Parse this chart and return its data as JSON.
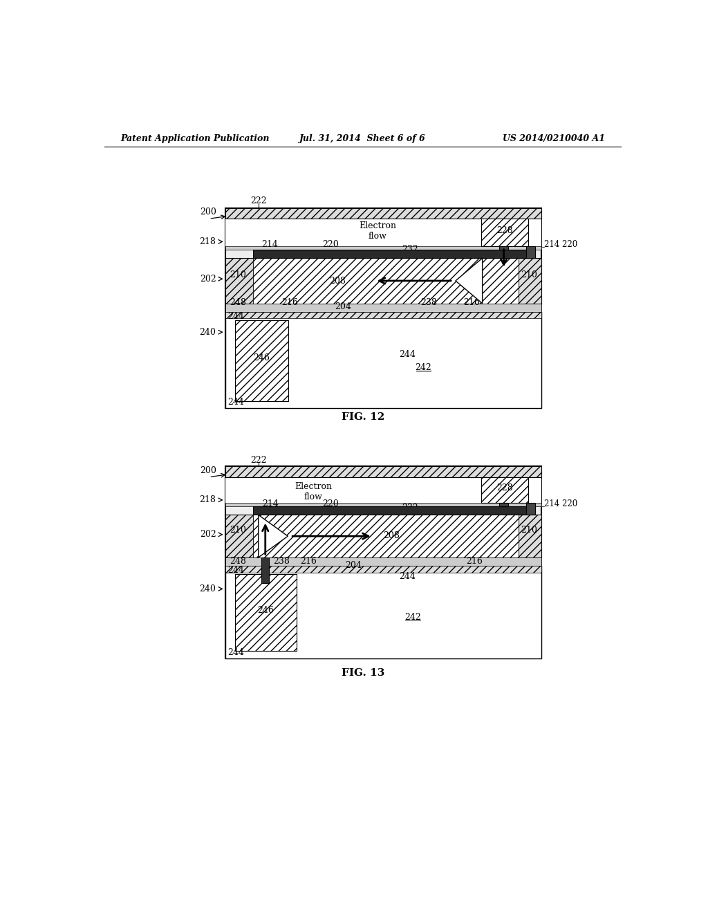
{
  "title_left": "Patent Application Publication",
  "title_center": "Jul. 31, 2014  Sheet 6 of 6",
  "title_right": "US 2014/0210040 A1",
  "fig12_label": "FIG. 12",
  "fig13_label": "FIG. 13",
  "bg_color": "#ffffff",
  "black": "#000000",
  "dark_gray": "#404040",
  "hatch_gray": "#aaaaaa",
  "light_gray": "#cccccc",
  "medium_gray": "#888888"
}
